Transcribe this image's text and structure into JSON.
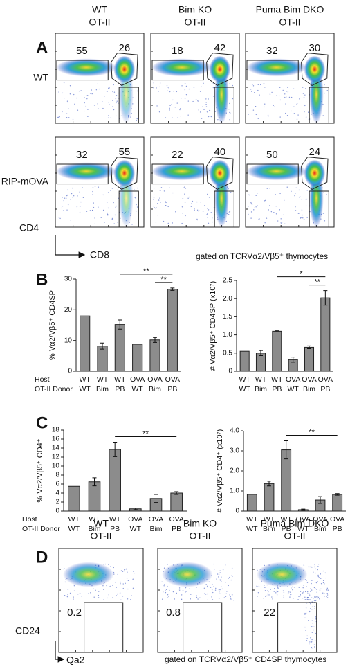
{
  "panel_a": {
    "label": "A",
    "columns": [
      [
        "WT",
        "OT-II"
      ],
      [
        "Bim KO",
        "OT-II"
      ],
      [
        "Puma Bim DKO",
        "OT-II"
      ]
    ],
    "rows": [
      "WT",
      "RIP-mOVA"
    ],
    "gates": [
      [
        "55",
        "26"
      ],
      [
        "18",
        "42"
      ],
      [
        "32",
        "30"
      ],
      [
        "32",
        "55"
      ],
      [
        "22",
        "40"
      ],
      [
        "50",
        "24"
      ]
    ],
    "y_axis": "CD4",
    "x_axis": "CD8",
    "note": "gated on TCRVα2/Vβ5⁺ thymocytes"
  },
  "panel_b": {
    "label": "B"
  },
  "panel_c": {
    "label": "C"
  },
  "panel_d": {
    "label": "D",
    "columns": [
      [
        "WT",
        "OT-II"
      ],
      [
        "Bim KO",
        "OT-II"
      ],
      [
        "Puma Bim DKO",
        "OT-II"
      ]
    ],
    "gates": [
      "0.2",
      "0.8",
      "22"
    ],
    "y_axis": "CD24",
    "x_axis": "Qa2",
    "note": "gated on TCRVα2/Vβ5⁺ CD4SP thymocytes"
  },
  "chart_data": [
    {
      "type": "bar",
      "ylabel": "% Vα2/Vβ5⁺ CD4SP",
      "category_titles": [
        "Host",
        "OT-II Donor"
      ],
      "categories": [
        "WT",
        "WT",
        "WT",
        "OVA",
        "OVA",
        "OVA"
      ],
      "subcategories": [
        "WT",
        "Bim",
        "PB",
        "WT",
        "Bim",
        "PB"
      ],
      "values": [
        18,
        8.2,
        15.2,
        8.8,
        10.2,
        26.7
      ],
      "errors": [
        null,
        1,
        1.5,
        null,
        0.8,
        0.4
      ],
      "color": "#8c8c8c",
      "ylim": [
        0,
        30
      ],
      "yticks": [
        0,
        10,
        20,
        30
      ],
      "annotations": [
        {
          "from": 2,
          "to": 5,
          "label": "**"
        },
        {
          "from": 4,
          "to": 5,
          "label": "**"
        }
      ]
    },
    {
      "type": "bar",
      "ylabel": "# Vα2/Vβ5⁺ CD4SP (x10⁷)",
      "categories": [
        "WT",
        "WT",
        "WT",
        "OVA",
        "OVA",
        "OVA"
      ],
      "subcategories": [
        "WT",
        "Bim",
        "PB",
        "WT",
        "Bim",
        "PB"
      ],
      "values": [
        0.55,
        0.5,
        1.1,
        0.32,
        0.66,
        2.02
      ],
      "errors": [
        null,
        0.07,
        0.02,
        0.07,
        0.04,
        0.2
      ],
      "color": "#8c8c8c",
      "ylim": [
        0,
        2.5
      ],
      "yticks": [
        0,
        0.5,
        {
          "value": 1,
          "label": "1.0"
        },
        1.5,
        {
          "value": 2,
          "label": "2.0"
        },
        2.5
      ],
      "annotations": [
        {
          "from": 2,
          "to": 5,
          "label": "*"
        },
        {
          "from": 4,
          "to": 5,
          "label": "**"
        }
      ]
    },
    {
      "type": "bar",
      "ylabel": "% Vα2/Vβ5⁺ CD4⁺",
      "category_titles": [
        "Host",
        "OT-II Donor"
      ],
      "categories": [
        "WT",
        "WT",
        "WT",
        "OVA",
        "OVA",
        "OVA"
      ],
      "subcategories": [
        "WT",
        "Bim",
        "PB",
        "WT",
        "Bim",
        "PB"
      ],
      "values": [
        5.5,
        6.5,
        13.7,
        0.5,
        2.8,
        4.0
      ],
      "errors": [
        null,
        0.9,
        1.6,
        0.2,
        0.9,
        0.3
      ],
      "color": "#8c8c8c",
      "ylim": [
        0,
        18
      ],
      "yticks": [
        0,
        2,
        4,
        6,
        8,
        10,
        12,
        14,
        16,
        18
      ],
      "annotations": [
        {
          "from": 2,
          "to": 5,
          "label": "**"
        }
      ]
    },
    {
      "type": "bar",
      "ylabel": "# Vα2/Vβ5⁺ CD4⁺ (x10⁷)",
      "categories": [
        "WT",
        "WT",
        "WT",
        "OVA",
        "OVA",
        "OVA"
      ],
      "subcategories": [
        "WT",
        "Bim",
        "PB",
        "WT",
        "Bim",
        "PB"
      ],
      "values": [
        0.83,
        1.37,
        3.05,
        0.07,
        0.55,
        0.83
      ],
      "errors": [
        null,
        0.12,
        0.45,
        0.03,
        0.17,
        0.04
      ],
      "color": "#8c8c8c",
      "ylim": [
        0,
        4
      ],
      "yticks": [
        0,
        {
          "value": 1,
          "label": "1.0"
        },
        {
          "value": 2,
          "label": "2.0"
        },
        {
          "value": 3,
          "label": "3.0"
        },
        {
          "value": 4,
          "label": "4.0"
        }
      ],
      "annotations": [
        {
          "from": 2,
          "to": 5,
          "label": "**"
        }
      ]
    }
  ]
}
